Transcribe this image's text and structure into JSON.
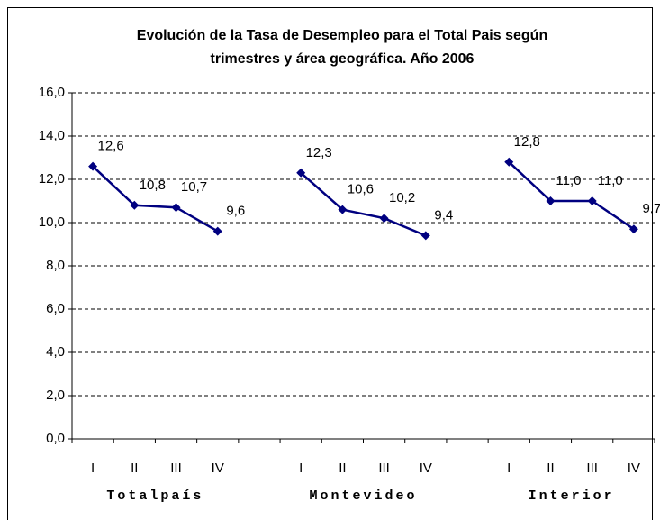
{
  "chart_data": {
    "type": "line",
    "title": [
      "Evolución de la Tasa de Desempleo para el Total Pais según",
      "trimestres y área geográfica. Año 2006"
    ],
    "categories": [
      "I",
      "II",
      "III",
      "IV",
      null,
      "I",
      "II",
      "III",
      "IV",
      null,
      "I",
      "II",
      "III",
      "IV"
    ],
    "group_labels": [
      "Totalpaís",
      "Montevideo",
      "Interior"
    ],
    "values": [
      12.6,
      10.8,
      10.7,
      9.6,
      null,
      12.3,
      10.6,
      10.2,
      9.4,
      null,
      12.8,
      11.0,
      11.0,
      9.7
    ],
    "value_labels": [
      "12,6",
      "10,8",
      "10,7",
      "9,6",
      null,
      "12,3",
      "10,6",
      "10,2",
      "9,4",
      null,
      "12,8",
      "11,0",
      "11,0",
      "9,7"
    ],
    "color": "#000080",
    "ylim": [
      0,
      16
    ],
    "yticks": [
      {
        "value": 0,
        "label": "0,0"
      },
      {
        "value": 2,
        "label": "2,0"
      },
      {
        "value": 4,
        "label": "4,0"
      },
      {
        "value": 6,
        "label": "6,0"
      },
      {
        "value": 8,
        "label": "8,0"
      },
      {
        "value": 10,
        "label": "10,0"
      },
      {
        "value": 12,
        "label": "12,0"
      },
      {
        "value": 14,
        "label": "14,0"
      },
      {
        "value": 16,
        "label": "16,0"
      }
    ],
    "grid": true
  }
}
